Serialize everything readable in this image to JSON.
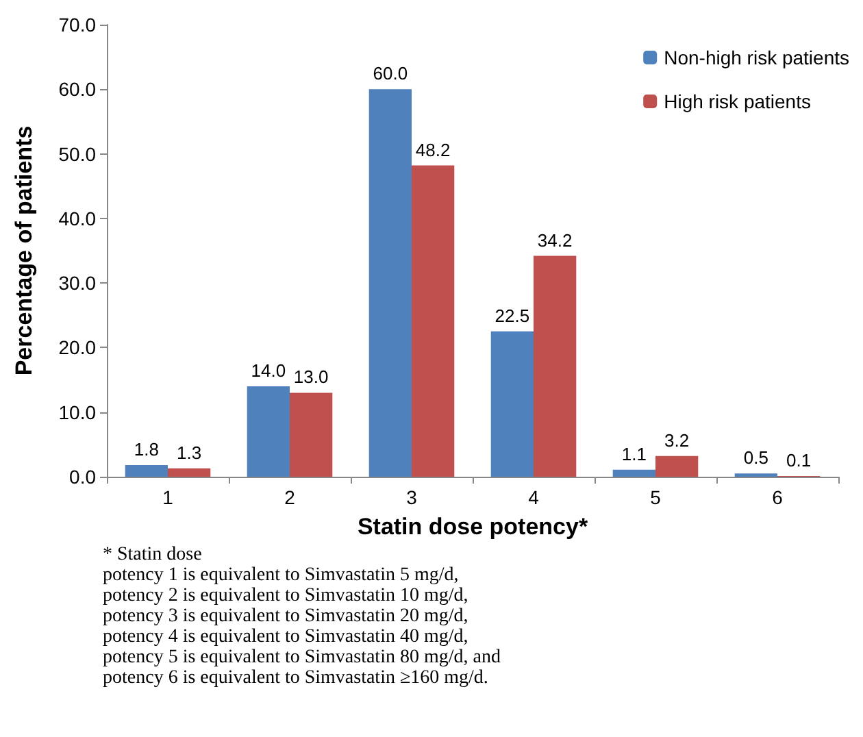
{
  "chart_data": {
    "type": "bar",
    "xlabel": "Statin dose potency*",
    "ylabel": "Percentage of patients",
    "categories": [
      "1",
      "2",
      "3",
      "4",
      "5",
      "6"
    ],
    "series": [
      {
        "name": "Non-high risk patients",
        "color": "#4f81bd",
        "values": [
          1.8,
          14.0,
          60.0,
          22.5,
          1.1,
          0.5
        ],
        "value_labels": [
          "1.8",
          "14.0",
          "60.0",
          "22.5",
          "1.1",
          "0.5"
        ]
      },
      {
        "name": "High risk patients",
        "color": "#c0504d",
        "values": [
          1.3,
          13.0,
          48.2,
          34.2,
          3.2,
          0.1
        ],
        "value_labels": [
          "1.3",
          "13.0",
          "48.2",
          "34.2",
          "3.2",
          "0.1"
        ]
      }
    ],
    "ylim": [
      0,
      70
    ],
    "yticks": [
      {
        "value": 0,
        "label": "0.0"
      },
      {
        "value": 10,
        "label": "10.0"
      },
      {
        "value": 20,
        "label": "20.0"
      },
      {
        "value": 30,
        "label": "30.0"
      },
      {
        "value": 40,
        "label": "40.0"
      },
      {
        "value": 50,
        "label": "50.0"
      },
      {
        "value": 60,
        "label": "60.0"
      },
      {
        "value": 70,
        "label": "70.0"
      }
    ],
    "grid": false,
    "legend": "top right",
    "annotations": [
      "* Statin dose",
      "potency 1 is equivalent to Simvastatin 5 mg/d,",
      "potency 2 is equivalent to Simvastatin 10 mg/d,",
      "potency 3 is equivalent to Simvastatin 20 mg/d,",
      "potency 4 is equivalent to Simvastatin 40 mg/d,",
      "potency 5 is equivalent to Simvastatin 80 mg/d, and",
      "potency 6 is equivalent to Simvastatin ≥160 mg/d."
    ]
  }
}
